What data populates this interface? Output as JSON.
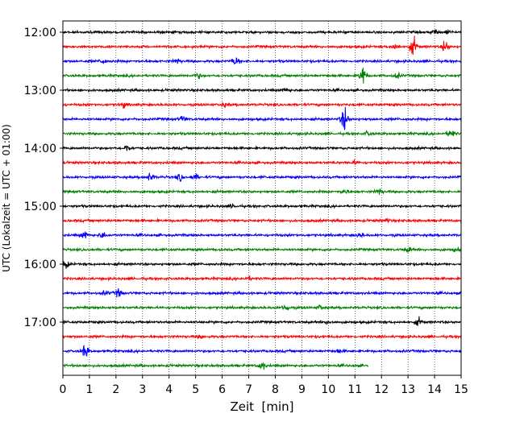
{
  "chart_data": {
    "type": "line",
    "title": "",
    "xlabel": "Zeit  [min]",
    "ylabel": "UTC (Lokalzeit = UTC + 01:00)",
    "xlim": [
      0,
      15
    ],
    "x_ticks": [
      0,
      1,
      2,
      3,
      4,
      5,
      6,
      7,
      8,
      9,
      10,
      11,
      12,
      13,
      14,
      15
    ],
    "y_tick_labels": [
      "12:00",
      "13:00",
      "14:00",
      "15:00",
      "16:00",
      "17:00"
    ],
    "grid": "vertical dotted at each minute",
    "trace_interval_min": 15,
    "trace_colors": [
      "#000000",
      "#ff0000",
      "#0000ff",
      "#008000"
    ],
    "traces": [
      {
        "start": "12:00",
        "color": "#000000",
        "events": [
          {
            "t": 14.0,
            "amp": 0.35
          },
          {
            "t": 14.5,
            "amp": 0.3
          }
        ]
      },
      {
        "start": "12:15",
        "color": "#ff0000",
        "events": [
          {
            "t": 13.2,
            "amp": 1.2
          },
          {
            "t": 14.4,
            "amp": 0.8
          },
          {
            "t": 12.5,
            "amp": 0.4
          }
        ]
      },
      {
        "start": "12:30",
        "color": "#0000ff",
        "events": [
          {
            "t": 6.5,
            "amp": 0.6
          },
          {
            "t": 4.3,
            "amp": 0.35
          },
          {
            "t": 1.5,
            "amp": 0.3
          }
        ]
      },
      {
        "start": "12:45",
        "color": "#008000",
        "events": [
          {
            "t": 11.3,
            "amp": 1.4
          },
          {
            "t": 12.6,
            "amp": 0.35
          },
          {
            "t": 5.1,
            "amp": 0.3
          }
        ]
      },
      {
        "start": "13:00",
        "color": "#000000",
        "events": [
          {
            "t": 8.4,
            "amp": 0.3
          }
        ]
      },
      {
        "start": "13:15",
        "color": "#ff0000",
        "events": [
          {
            "t": 2.3,
            "amp": 0.35
          },
          {
            "t": 6.1,
            "amp": 0.25
          }
        ]
      },
      {
        "start": "13:30",
        "color": "#0000ff",
        "events": [
          {
            "t": 10.6,
            "amp": 1.7
          },
          {
            "t": 4.5,
            "amp": 0.4
          }
        ]
      },
      {
        "start": "13:45",
        "color": "#008000",
        "events": [
          {
            "t": 14.6,
            "amp": 0.6
          },
          {
            "t": 11.5,
            "amp": 0.3
          }
        ]
      },
      {
        "start": "14:00",
        "color": "#000000",
        "events": [
          {
            "t": 2.4,
            "amp": 0.45
          }
        ]
      },
      {
        "start": "14:15",
        "color": "#ff0000",
        "events": [
          {
            "t": 11.0,
            "amp": 0.25
          }
        ]
      },
      {
        "start": "14:30",
        "color": "#0000ff",
        "events": [
          {
            "t": 3.3,
            "amp": 0.55
          },
          {
            "t": 4.4,
            "amp": 0.45
          },
          {
            "t": 5.0,
            "amp": 0.35
          }
        ]
      },
      {
        "start": "14:45",
        "color": "#008000",
        "events": [
          {
            "t": 11.9,
            "amp": 0.45
          },
          {
            "t": 10.6,
            "amp": 0.3
          }
        ]
      },
      {
        "start": "15:00",
        "color": "#000000",
        "events": [
          {
            "t": 6.4,
            "amp": 0.25
          }
        ]
      },
      {
        "start": "15:15",
        "color": "#ff0000",
        "events": [
          {
            "t": 12.2,
            "amp": 0.2
          }
        ]
      },
      {
        "start": "15:30",
        "color": "#0000ff",
        "events": [
          {
            "t": 0.8,
            "amp": 0.55
          },
          {
            "t": 1.5,
            "amp": 0.4
          },
          {
            "t": 11.2,
            "amp": 0.3
          }
        ]
      },
      {
        "start": "15:45",
        "color": "#008000",
        "events": [
          {
            "t": 13.0,
            "amp": 0.3
          },
          {
            "t": 14.8,
            "amp": 0.3
          }
        ]
      },
      {
        "start": "16:00",
        "color": "#000000",
        "events": [
          {
            "t": 0.1,
            "amp": 0.5
          }
        ]
      },
      {
        "start": "16:15",
        "color": "#ff0000",
        "events": [
          {
            "t": 7.0,
            "amp": 0.2
          }
        ]
      },
      {
        "start": "16:30",
        "color": "#0000ff",
        "events": [
          {
            "t": 2.1,
            "amp": 0.5
          },
          {
            "t": 1.6,
            "amp": 0.3
          }
        ]
      },
      {
        "start": "16:45",
        "color": "#008000",
        "events": [
          {
            "t": 8.4,
            "amp": 0.45
          },
          {
            "t": 9.7,
            "amp": 0.3
          }
        ]
      },
      {
        "start": "17:00",
        "color": "#000000",
        "events": [
          {
            "t": 13.4,
            "amp": 0.5
          },
          {
            "t": 10.0,
            "amp": 0.25
          }
        ]
      },
      {
        "start": "17:15",
        "color": "#ff0000",
        "events": [
          {
            "t": 5.2,
            "amp": 0.2
          }
        ]
      },
      {
        "start": "17:30",
        "color": "#0000ff",
        "events": [
          {
            "t": 0.85,
            "amp": 0.9
          },
          {
            "t": 10.4,
            "amp": 0.3
          }
        ]
      },
      {
        "start": "17:45",
        "color": "#008000",
        "end_t": 11.5,
        "events": [
          {
            "t": 7.5,
            "amp": 0.6
          }
        ]
      }
    ]
  }
}
